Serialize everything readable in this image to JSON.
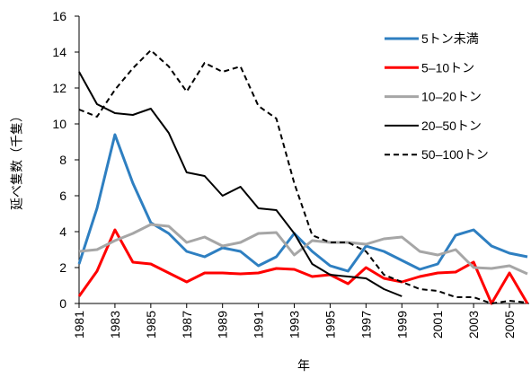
{
  "chart_data": {
    "type": "line",
    "x_label": "年",
    "y_label": "延べ隻数（千隻）",
    "x": [
      1981,
      1982,
      1983,
      1984,
      1985,
      1986,
      1987,
      1988,
      1989,
      1990,
      1991,
      1992,
      1993,
      1994,
      1995,
      1996,
      1997,
      1998,
      1999,
      2000,
      2001,
      2002,
      2003,
      2004,
      2005,
      2006
    ],
    "xlim": [
      1981,
      2006
    ],
    "xticks": [
      1981,
      1983,
      1985,
      1987,
      1989,
      1991,
      1993,
      1995,
      1997,
      1999,
      2001,
      2003,
      2005
    ],
    "ylim": [
      0,
      16
    ],
    "yticks": [
      0,
      2,
      4,
      6,
      8,
      10,
      12,
      14,
      16
    ],
    "legend": "upper right",
    "series": [
      {
        "name": "5トン未満",
        "color": "#2e7fc1",
        "dashed": false,
        "values": [
          2.2,
          5.3,
          9.4,
          6.7,
          4.5,
          3.9,
          2.9,
          2.6,
          3.1,
          2.9,
          2.1,
          2.6,
          3.9,
          2.9,
          2.1,
          1.8,
          3.2,
          2.9,
          2.4,
          1.9,
          2.2,
          3.8,
          4.1,
          3.2,
          2.8,
          2.6
        ]
      },
      {
        "name": "5–10トン",
        "color": "#ff0000",
        "dashed": false,
        "values": [
          0.4,
          1.8,
          4.1,
          2.3,
          2.2,
          1.7,
          1.2,
          1.7,
          1.7,
          1.65,
          1.7,
          1.95,
          1.9,
          1.5,
          1.6,
          1.1,
          2.0,
          1.4,
          1.2,
          1.5,
          1.7,
          1.75,
          2.3,
          0.0,
          1.7,
          0.0
        ]
      },
      {
        "name": "10–20トン",
        "color": "#a6a6a6",
        "dashed": false,
        "values": [
          2.9,
          3.0,
          3.5,
          3.9,
          4.4,
          4.3,
          3.4,
          3.7,
          3.2,
          3.4,
          3.9,
          3.95,
          2.7,
          3.5,
          3.4,
          3.4,
          3.3,
          3.6,
          3.7,
          2.9,
          2.7,
          3.0,
          2.0,
          1.95,
          2.1,
          1.65
        ]
      },
      {
        "name": "20–50トン",
        "color": "#000000",
        "dashed": false,
        "values": [
          12.9,
          11.1,
          10.6,
          10.5,
          10.85,
          9.5,
          7.3,
          7.1,
          6.0,
          6.5,
          5.3,
          5.2,
          3.9,
          2.2,
          1.6,
          1.5,
          1.4,
          0.8,
          0.4,
          null,
          null,
          null,
          null,
          null,
          null,
          null
        ]
      },
      {
        "name": "50–100トン",
        "color": "#000000",
        "dashed": true,
        "values": [
          10.8,
          10.4,
          11.9,
          13.1,
          14.1,
          13.2,
          11.8,
          13.4,
          12.9,
          13.2,
          11.0,
          10.3,
          6.7,
          3.8,
          3.4,
          3.4,
          2.9,
          1.6,
          1.2,
          0.8,
          0.7,
          0.35,
          0.35,
          0.0,
          0.15,
          0.05
        ]
      }
    ]
  }
}
